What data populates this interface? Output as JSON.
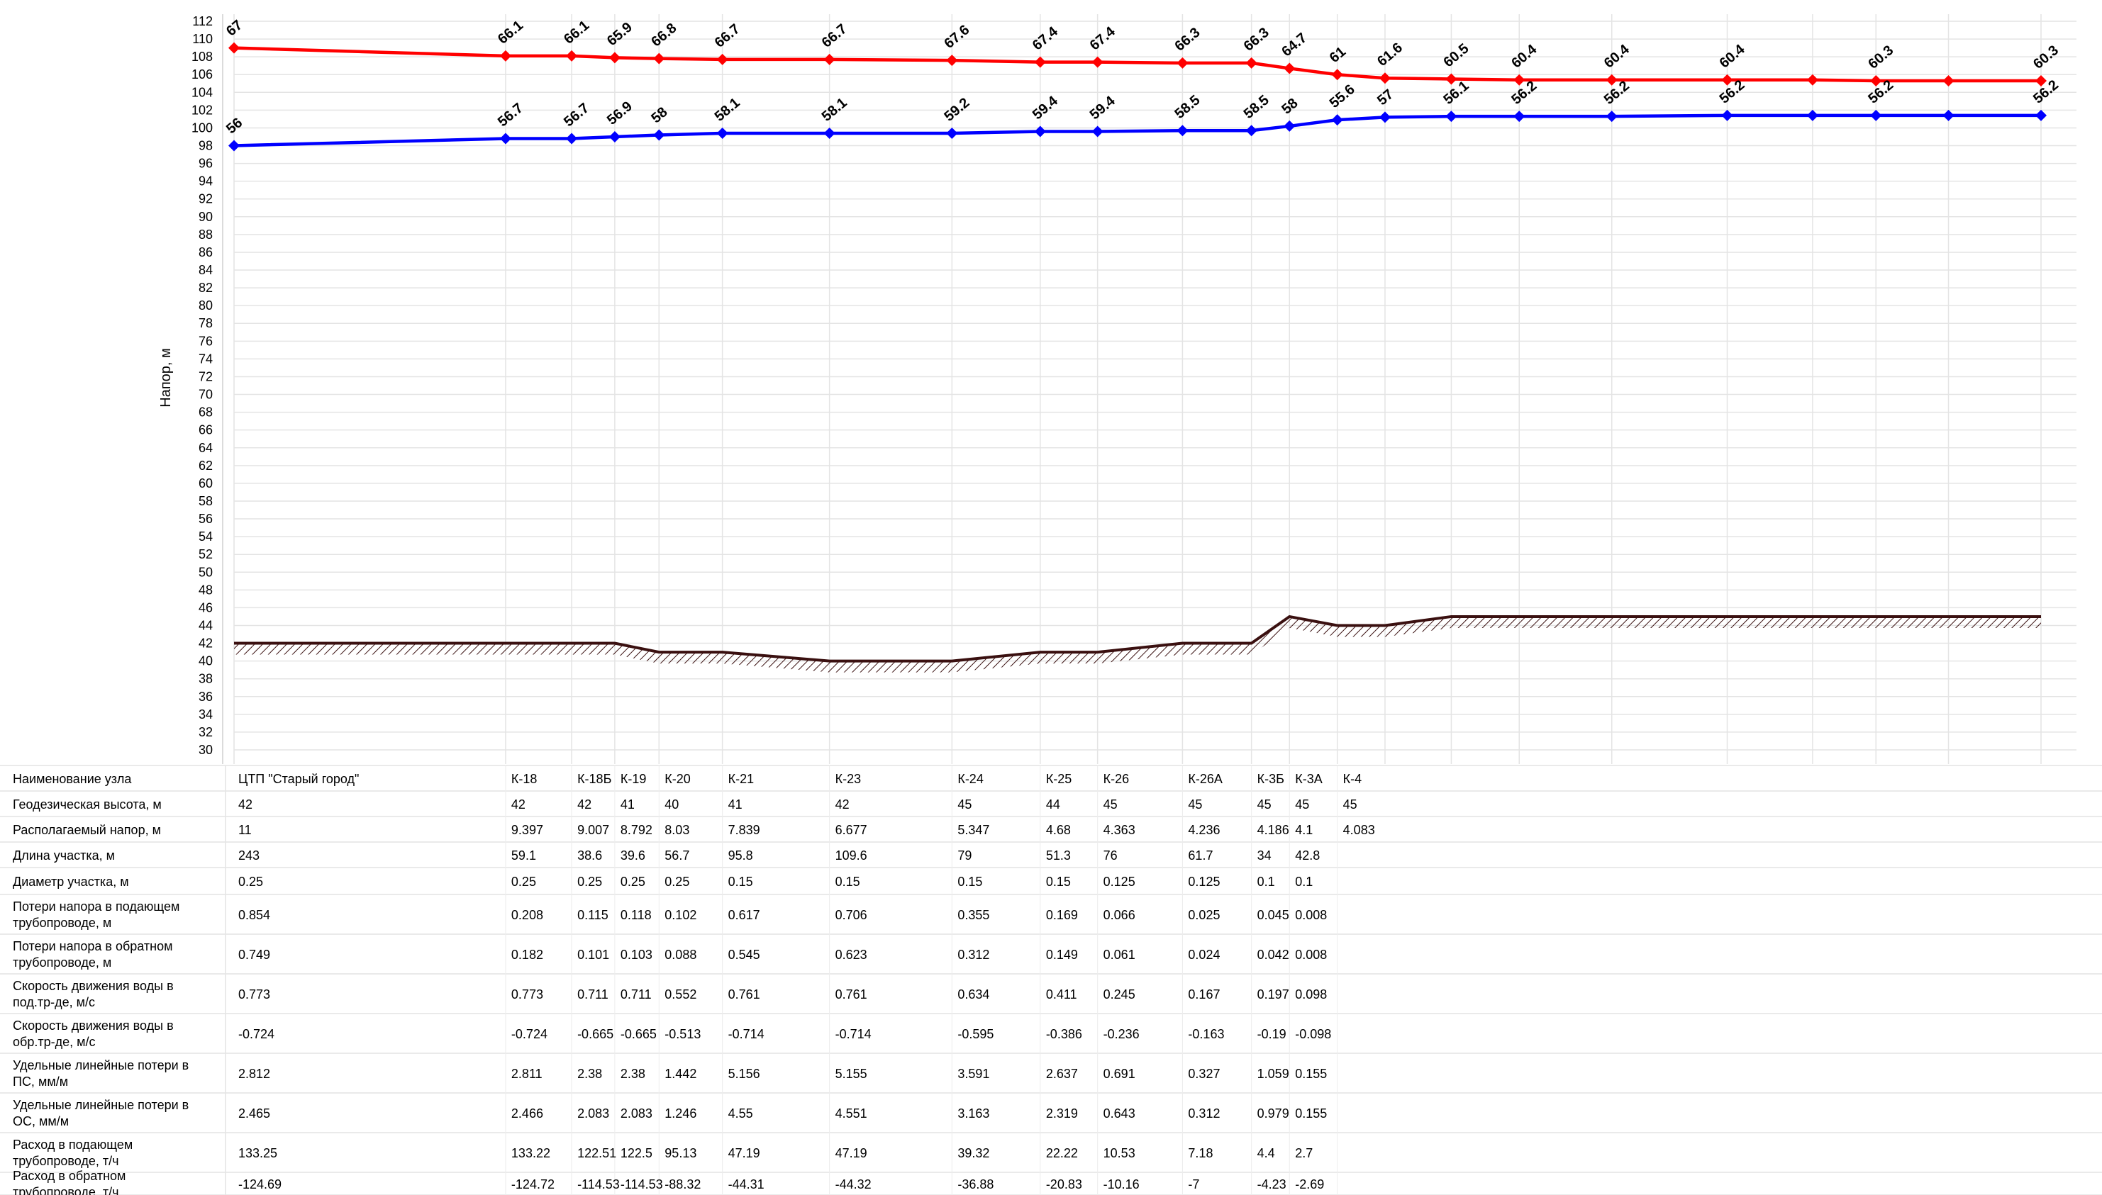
{
  "chart_data": {
    "type": "line",
    "title": "",
    "ylabel": "Напор, м",
    "ylim": [
      30,
      112
    ],
    "yticks": [
      30,
      32,
      34,
      36,
      38,
      40,
      42,
      44,
      46,
      48,
      50,
      52,
      54,
      56,
      58,
      60,
      62,
      64,
      66,
      68,
      70,
      72,
      74,
      76,
      78,
      80,
      82,
      84,
      86,
      88,
      90,
      92,
      94,
      96,
      98,
      100,
      102,
      104,
      106,
      108,
      110,
      112
    ],
    "grid": true,
    "x": [
      0,
      243,
      302.1,
      340.7,
      380.3,
      437,
      532.8,
      642.4,
      721.4,
      772.7,
      848.7,
      910.4,
      944.4,
      987.2,
      1029.9,
      1089.2,
      1150,
      1232.8,
      1336.1,
      1412.5,
      1469.2,
      1534.1,
      1616.9
    ],
    "categories": [
      "ЦТП \"Старый город\"",
      "К-18",
      "К-18Б",
      "К-19",
      "К-20",
      "К-21",
      "К-23",
      "К-24",
      "К-25",
      "К-26",
      "К-26А",
      "К-3Б",
      "К-3А",
      "К-4"
    ],
    "category_x": [
      0,
      243,
      302.1,
      340.7,
      380.3,
      437,
      532.8,
      642.4,
      721.4,
      772.7,
      848.7,
      910.4,
      944.4,
      987.2
    ],
    "series": [
      {
        "color": "#ff0000",
        "values": [
          109.0,
          108.1,
          108.1,
          107.9,
          107.8,
          107.7,
          107.7,
          107.6,
          107.4,
          107.4,
          107.3,
          107.3,
          106.7,
          106.0,
          105.6,
          105.5,
          105.4,
          105.4,
          105.4,
          105.4,
          105.3,
          105.3,
          105.3
        ],
        "labels": [
          "67",
          "66.1",
          "66.1",
          "65.9",
          "66.8",
          "66.7",
          "66.7",
          "67.6",
          "67.4",
          "67.4",
          "66.3",
          "66.3",
          "64.7",
          "61",
          "61.6",
          "60.5",
          "60.4",
          "60.4",
          "60.4",
          "60.4",
          "60.3",
          "60.3",
          "60.3"
        ],
        "label_index": [
          0,
          1,
          2,
          3,
          4,
          5,
          6,
          7,
          8,
          9,
          10,
          11,
          12,
          13,
          14,
          15,
          16,
          17,
          18,
          20,
          22
        ],
        "labels_shown": [
          "67",
          "66.1",
          "66.1",
          "65.9",
          "66.8",
          "66.7",
          "66.7",
          "67.6",
          "67.4",
          "67.4",
          "66.3",
          "66.3",
          "64.7",
          "61",
          "61.6",
          "60.5",
          "60.4",
          "60.4",
          "60.4",
          "60.3",
          "60.3"
        ]
      },
      {
        "color": "#0000ff",
        "values": [
          98.0,
          98.8,
          98.8,
          99.0,
          99.2,
          99.4,
          99.4,
          99.4,
          99.6,
          99.6,
          99.7,
          99.7,
          100.2,
          100.9,
          101.2,
          101.3,
          101.3,
          101.3,
          101.4,
          101.4,
          101.4,
          101.4,
          101.4
        ],
        "labels_shown": [
          "56",
          "56.7",
          "56.7",
          "56.9",
          "58",
          "58.1",
          "58.1",
          "59.2",
          "59.4",
          "59.4",
          "58.5",
          "58.5",
          "58",
          "55.6",
          "57",
          "56.1",
          "56.2",
          "56.2",
          "56.2",
          "56.2",
          "56.2"
        ]
      },
      {
        "color": "#3a1010",
        "values": [
          42,
          42,
          42,
          42,
          41,
          41,
          40,
          40,
          41,
          41,
          42,
          42,
          45,
          44,
          44,
          45,
          45,
          45,
          45,
          45,
          45,
          45,
          45
        ],
        "role": "ground"
      }
    ]
  },
  "table": {
    "rows": [
      {
        "label": [
          "Наименование узла"
        ],
        "cells": [
          "ЦТП \"Старый город\"",
          "К-18",
          "К-18Б",
          "К-19",
          "К-20",
          "К-21",
          "К-23",
          "К-24",
          "К-25",
          "К-26",
          "К-26А",
          "К-3Б",
          "К-3А",
          "К-4"
        ]
      },
      {
        "label": [
          "Геодезическая высота, м"
        ],
        "cells": [
          "42",
          "42",
          "42",
          "41",
          "40",
          "41",
          "42",
          "45",
          "44",
          "45",
          "45",
          "45",
          "45",
          "45"
        ]
      },
      {
        "label": [
          "Располагаемый напор, м"
        ],
        "cells": [
          "11",
          "9.397",
          "9.007",
          "8.792",
          "8.03",
          "7.839",
          "6.677",
          "5.347",
          "4.68",
          "4.363",
          "4.236",
          "4.186",
          "4.1",
          "4.083"
        ]
      },
      {
        "label": [
          "Длина участка, м"
        ],
        "cells": [
          "243",
          "59.1",
          "38.6",
          "39.6",
          "56.7",
          "95.8",
          "109.6",
          "79",
          "51.3",
          "76",
          "61.7",
          "34",
          "42.8",
          ""
        ]
      },
      {
        "label": [
          "Диаметр участка, м"
        ],
        "cells": [
          "0.25",
          "0.25",
          "0.25",
          "0.25",
          "0.25",
          "0.15",
          "0.15",
          "0.15",
          "0.15",
          "0.125",
          "0.125",
          "0.1",
          "0.1",
          ""
        ]
      },
      {
        "label": [
          "Потери напора в подающем",
          "трубопроводе, м"
        ],
        "cells": [
          "0.854",
          "0.208",
          "0.115",
          "0.118",
          "0.102",
          "0.617",
          "0.706",
          "0.355",
          "0.169",
          "0.066",
          "0.025",
          "0.045",
          "0.008",
          ""
        ]
      },
      {
        "label": [
          "Потери напора в обратном",
          "трубопроводе, м"
        ],
        "cells": [
          "0.749",
          "0.182",
          "0.101",
          "0.103",
          "0.088",
          "0.545",
          "0.623",
          "0.312",
          "0.149",
          "0.061",
          "0.024",
          "0.042",
          "0.008",
          ""
        ]
      },
      {
        "label": [
          "Скорость движения воды в",
          "под.тр-де, м/с"
        ],
        "cells": [
          "0.773",
          "0.773",
          "0.711",
          "0.711",
          "0.552",
          "0.761",
          "0.761",
          "0.634",
          "0.411",
          "0.245",
          "0.167",
          "0.197",
          "0.098",
          ""
        ]
      },
      {
        "label": [
          "Скорость движения воды в",
          "обр.тр-де, м/с"
        ],
        "cells": [
          "-0.724",
          "-0.724",
          "-0.665",
          "-0.665",
          "-0.513",
          "-0.714",
          "-0.714",
          "-0.595",
          "-0.386",
          "-0.236",
          "-0.163",
          "-0.19",
          "-0.098",
          ""
        ]
      },
      {
        "label": [
          "Удельные линейные потери в",
          "ПС, мм/м"
        ],
        "cells": [
          "2.812",
          "2.811",
          "2.38",
          "2.38",
          "1.442",
          "5.156",
          "5.155",
          "3.591",
          "2.637",
          "0.691",
          "0.327",
          "1.059",
          "0.155",
          ""
        ]
      },
      {
        "label": [
          "Удельные линейные потери в",
          "ОС, мм/м"
        ],
        "cells": [
          "2.465",
          "2.466",
          "2.083",
          "2.083",
          "1.246",
          "4.55",
          "4.551",
          "3.163",
          "2.319",
          "0.643",
          "0.312",
          "0.979",
          "0.155",
          ""
        ]
      },
      {
        "label": [
          "Расход в подающем",
          "трубопроводе, т/ч"
        ],
        "cells": [
          "133.25",
          "133.22",
          "122.51",
          "122.5",
          "95.13",
          "47.19",
          "47.19",
          "39.32",
          "22.22",
          "10.53",
          "7.18",
          "4.4",
          "2.7",
          ""
        ]
      },
      {
        "label": [
          "Расход в обратном",
          "трубопроводе, т/ч"
        ],
        "cells": [
          "-124.69",
          "-124.72",
          "-114.53",
          "-114.53",
          "-88.32",
          "-44.31",
          "-44.32",
          "-36.88",
          "-20.83",
          "-10.16",
          "-7",
          "-4.23",
          "-2.69",
          ""
        ]
      }
    ]
  }
}
